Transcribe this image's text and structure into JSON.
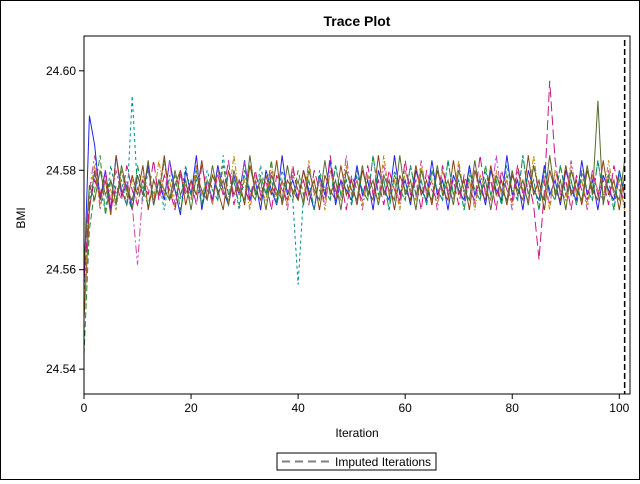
{
  "chart_data": {
    "type": "line",
    "title": "Trace Plot",
    "xlabel": "Iteration",
    "ylabel": "BMI",
    "xlim": [
      0,
      102
    ],
    "ylim": [
      24.535,
      24.607
    ],
    "xticks": [
      "0",
      "20",
      "40",
      "60",
      "80",
      "100"
    ],
    "xtick_values": [
      0,
      20,
      40,
      60,
      80,
      100
    ],
    "yticks": [
      "24.54",
      "24.56",
      "24.58",
      "24.60"
    ],
    "ytick_values": [
      24.54,
      24.56,
      24.58,
      24.6
    ],
    "grid": false,
    "legend": {
      "position": "bottom",
      "entries": [
        {
          "label": "Imputed Iterations",
          "style": "dashed",
          "color": "#808080"
        }
      ]
    },
    "reference_line": {
      "x": 101,
      "style": "dashed",
      "color": "#000000"
    },
    "series": [
      {
        "color": "#2222ee",
        "dash": "",
        "values": [
          24.557,
          24.591,
          24.585,
          24.574,
          24.58,
          24.572,
          24.583,
          24.575,
          24.577,
          24.572,
          24.579,
          24.575,
          24.581,
          24.573,
          24.578,
          24.574,
          24.582,
          24.576,
          24.571,
          24.58,
          24.575,
          24.583,
          24.572,
          24.578,
          24.574,
          24.581,
          24.576,
          24.573,
          24.579,
          24.575,
          24.582,
          24.574,
          24.578,
          24.572,
          24.58,
          24.576,
          24.573,
          24.583,
          24.575,
          24.578,
          24.574,
          24.58,
          24.576,
          24.572,
          24.579,
          24.575,
          24.582,
          24.573,
          24.578,
          24.576,
          24.574,
          24.581,
          24.575,
          24.578,
          24.572,
          24.58,
          24.576,
          24.574,
          24.583,
          24.575,
          24.578,
          24.573,
          24.58,
          24.576,
          24.574,
          24.582,
          24.575,
          24.578,
          24.572,
          24.579,
          24.576,
          24.574,
          24.581,
          24.575,
          24.578,
          24.573,
          24.58,
          24.576,
          24.574,
          24.583,
          24.575,
          24.578,
          24.572,
          24.58,
          24.576,
          24.574,
          24.581,
          24.575,
          24.578,
          24.573,
          24.58,
          24.576,
          24.574,
          24.582,
          24.575,
          24.578,
          24.572,
          24.579,
          24.576,
          24.574,
          24.58,
          24.575
        ]
      },
      {
        "color": "#228b22",
        "dash": "6,3",
        "values": [
          24.543,
          24.568,
          24.576,
          24.583,
          24.571,
          24.578,
          24.574,
          24.58,
          24.575,
          24.572,
          24.581,
          24.576,
          24.573,
          24.578,
          24.575,
          24.582,
          24.574,
          24.579,
          24.572,
          24.577,
          24.575,
          24.58,
          24.573,
          24.578,
          24.576,
          24.574,
          24.581,
          24.575,
          24.578,
          24.573,
          24.58,
          24.576,
          24.574,
          24.579,
          24.575,
          24.582,
          24.573,
          24.578,
          24.576,
          24.574,
          24.58,
          24.575,
          24.578,
          24.572,
          24.579,
          24.576,
          24.574,
          24.581,
          24.575,
          24.578,
          24.573,
          24.58,
          24.576,
          24.574,
          24.583,
          24.575,
          24.578,
          24.572,
          24.579,
          24.576,
          24.574,
          24.581,
          24.575,
          24.578,
          24.573,
          24.58,
          24.576,
          24.574,
          24.582,
          24.575,
          24.578,
          24.572,
          24.58,
          24.576,
          24.574,
          24.581,
          24.575,
          24.578,
          24.573,
          24.579,
          24.576,
          24.574,
          24.583,
          24.575,
          24.578,
          24.572,
          24.58,
          24.576,
          24.574,
          24.581,
          24.575,
          24.578,
          24.573,
          24.58,
          24.576,
          24.574,
          24.582,
          24.575,
          24.578,
          24.572,
          24.579,
          24.576
        ]
      },
      {
        "color": "#8b4513",
        "dash": "",
        "values": [
          24.55,
          24.572,
          24.58,
          24.574,
          24.578,
          24.571,
          24.583,
          24.576,
          24.573,
          24.579,
          24.575,
          24.581,
          24.572,
          24.578,
          24.575,
          24.583,
          24.574,
          24.577,
          24.58,
          24.573,
          24.578,
          24.575,
          24.582,
          24.574,
          24.579,
          24.576,
          24.572,
          24.58,
          24.575,
          24.578,
          24.573,
          24.581,
          24.576,
          24.574,
          24.579,
          24.575,
          24.582,
          24.573,
          24.578,
          24.576,
          24.574,
          24.58,
          24.575,
          24.578,
          24.572,
          24.579,
          24.576,
          24.574,
          24.581,
          24.575,
          24.578,
          24.573,
          24.58,
          24.576,
          24.574,
          24.583,
          24.575,
          24.578,
          24.572,
          24.579,
          24.576,
          24.574,
          24.581,
          24.575,
          24.578,
          24.573,
          24.58,
          24.576,
          24.574,
          24.582,
          24.575,
          24.578,
          24.572,
          24.58,
          24.576,
          24.574,
          24.581,
          24.575,
          24.578,
          24.573,
          24.579,
          24.576,
          24.574,
          24.583,
          24.575,
          24.578,
          24.572,
          24.58,
          24.576,
          24.574,
          24.581,
          24.575,
          24.578,
          24.573,
          24.58,
          24.576,
          24.574,
          24.582,
          24.575,
          24.578,
          24.572,
          24.579
        ]
      },
      {
        "color": "#cc44aa",
        "dash": "8,3,2,3",
        "values": [
          24.56,
          24.576,
          24.583,
          24.572,
          24.579,
          24.574,
          24.58,
          24.575,
          24.578,
          24.573,
          24.561,
          24.576,
          24.58,
          24.574,
          24.578,
          24.575,
          24.582,
          24.573,
          24.579,
          24.576,
          24.574,
          24.581,
          24.575,
          24.578,
          24.573,
          24.58,
          24.576,
          24.574,
          24.579,
          24.575,
          24.582,
          24.573,
          24.578,
          24.576,
          24.574,
          24.58,
          24.575,
          24.578,
          24.572,
          24.579,
          24.576,
          24.574,
          24.581,
          24.575,
          24.578,
          24.573,
          24.58,
          24.576,
          24.574,
          24.583,
          24.575,
          24.578,
          24.572,
          24.579,
          24.576,
          24.574,
          24.581,
          24.575,
          24.578,
          24.573,
          24.58,
          24.576,
          24.574,
          24.582,
          24.575,
          24.578,
          24.572,
          24.58,
          24.576,
          24.574,
          24.581,
          24.575,
          24.578,
          24.573,
          24.579,
          24.576,
          24.574,
          24.583,
          24.575,
          24.578,
          24.572,
          24.58,
          24.576,
          24.574,
          24.581,
          24.575,
          24.578,
          24.573,
          24.58,
          24.576,
          24.574,
          24.582,
          24.575,
          24.578,
          24.572,
          24.579,
          24.576,
          24.574,
          24.58,
          24.575,
          24.578,
          24.573
        ]
      },
      {
        "color": "#008b8b",
        "dash": "3,3",
        "values": [
          24.555,
          24.574,
          24.579,
          24.576,
          24.572,
          24.581,
          24.575,
          24.578,
          24.573,
          24.595,
          24.576,
          24.574,
          24.58,
          24.575,
          24.578,
          24.572,
          24.579,
          24.576,
          24.574,
          24.581,
          24.575,
          24.578,
          24.573,
          24.58,
          24.576,
          24.574,
          24.583,
          24.575,
          24.578,
          24.572,
          24.579,
          24.576,
          24.574,
          24.581,
          24.575,
          24.578,
          24.573,
          24.58,
          24.576,
          24.574,
          24.557,
          24.575,
          24.578,
          24.572,
          24.58,
          24.576,
          24.574,
          24.581,
          24.575,
          24.578,
          24.573,
          24.579,
          24.576,
          24.574,
          24.583,
          24.575,
          24.578,
          24.572,
          24.58,
          24.576,
          24.574,
          24.581,
          24.575,
          24.578,
          24.573,
          24.58,
          24.576,
          24.574,
          24.582,
          24.575,
          24.578,
          24.572,
          24.579,
          24.576,
          24.574,
          24.58,
          24.575,
          24.578,
          24.573,
          24.581,
          24.576,
          24.574,
          24.583,
          24.575,
          24.578,
          24.572,
          24.58,
          24.576,
          24.574,
          24.581,
          24.575,
          24.578,
          24.573,
          24.579,
          24.576,
          24.574,
          24.582,
          24.575,
          24.578,
          24.572,
          24.58,
          24.576
        ]
      },
      {
        "color": "#b8860b",
        "dash": "5,2,1,2",
        "values": [
          24.552,
          24.575,
          24.581,
          24.573,
          24.578,
          24.576,
          24.572,
          24.58,
          24.575,
          24.578,
          24.573,
          24.579,
          24.576,
          24.574,
          24.582,
          24.575,
          24.578,
          24.572,
          24.58,
          24.576,
          24.574,
          24.581,
          24.575,
          24.578,
          24.573,
          24.58,
          24.576,
          24.574,
          24.583,
          24.575,
          24.578,
          24.572,
          24.579,
          24.576,
          24.574,
          24.581,
          24.575,
          24.578,
          24.573,
          24.58,
          24.576,
          24.574,
          24.582,
          24.575,
          24.578,
          24.572,
          24.58,
          24.576,
          24.574,
          24.581,
          24.575,
          24.578,
          24.573,
          24.579,
          24.576,
          24.574,
          24.583,
          24.575,
          24.578,
          24.572,
          24.58,
          24.576,
          24.574,
          24.581,
          24.575,
          24.578,
          24.573,
          24.58,
          24.576,
          24.574,
          24.582,
          24.575,
          24.578,
          24.572,
          24.579,
          24.576,
          24.574,
          24.58,
          24.575,
          24.578,
          24.573,
          24.581,
          24.576,
          24.574,
          24.583,
          24.575,
          24.578,
          24.572,
          24.58,
          24.576,
          24.574,
          24.581,
          24.575,
          24.578,
          24.573,
          24.579,
          24.576,
          24.574,
          24.582,
          24.575,
          24.578,
          24.572
        ]
      },
      {
        "color": "#c71585",
        "dash": "10,4",
        "values": [
          24.558,
          24.573,
          24.578,
          24.575,
          24.58,
          24.572,
          24.577,
          24.574,
          24.581,
          24.576,
          24.573,
          24.578,
          24.575,
          24.582,
          24.574,
          24.579,
          24.576,
          24.572,
          24.58,
          24.575,
          24.578,
          24.573,
          24.581,
          24.576,
          24.574,
          24.579,
          24.575,
          24.582,
          24.573,
          24.578,
          24.576,
          24.574,
          24.58,
          24.575,
          24.578,
          24.572,
          24.579,
          24.576,
          24.574,
          24.581,
          24.575,
          24.578,
          24.573,
          24.58,
          24.576,
          24.574,
          24.583,
          24.575,
          24.578,
          24.572,
          24.579,
          24.576,
          24.574,
          24.581,
          24.575,
          24.578,
          24.573,
          24.58,
          24.576,
          24.574,
          24.582,
          24.575,
          24.578,
          24.572,
          24.58,
          24.576,
          24.574,
          24.581,
          24.575,
          24.578,
          24.573,
          24.579,
          24.576,
          24.574,
          24.583,
          24.575,
          24.578,
          24.572,
          24.58,
          24.576,
          24.574,
          24.581,
          24.575,
          24.578,
          24.573,
          24.562,
          24.576,
          24.598,
          24.582,
          24.575,
          24.578,
          24.572,
          24.579,
          24.576,
          24.574,
          24.58,
          24.575,
          24.578,
          24.573,
          24.581,
          24.576,
          24.574
        ]
      },
      {
        "color": "#556b2f",
        "dash": "",
        "values": [
          24.561,
          24.577,
          24.574,
          24.58,
          24.575,
          24.578,
          24.573,
          24.581,
          24.576,
          24.574,
          24.579,
          24.575,
          24.582,
          24.573,
          24.578,
          24.576,
          24.574,
          24.58,
          24.575,
          24.578,
          24.572,
          24.579,
          24.576,
          24.574,
          24.581,
          24.575,
          24.578,
          24.573,
          24.58,
          24.576,
          24.574,
          24.583,
          24.575,
          24.578,
          24.572,
          24.579,
          24.576,
          24.574,
          24.581,
          24.575,
          24.578,
          24.573,
          24.58,
          24.576,
          24.574,
          24.582,
          24.575,
          24.578,
          24.572,
          24.58,
          24.576,
          24.574,
          24.581,
          24.575,
          24.578,
          24.573,
          24.579,
          24.576,
          24.574,
          24.583,
          24.575,
          24.578,
          24.572,
          24.58,
          24.576,
          24.574,
          24.581,
          24.575,
          24.578,
          24.573,
          24.58,
          24.576,
          24.574,
          24.582,
          24.575,
          24.578,
          24.572,
          24.579,
          24.576,
          24.574,
          24.58,
          24.575,
          24.578,
          24.573,
          24.581,
          24.576,
          24.574,
          24.583,
          24.575,
          24.578,
          24.572,
          24.58,
          24.576,
          24.574,
          24.581,
          24.575,
          24.594,
          24.573,
          24.579,
          24.576,
          24.574,
          24.582
        ]
      }
    ]
  }
}
